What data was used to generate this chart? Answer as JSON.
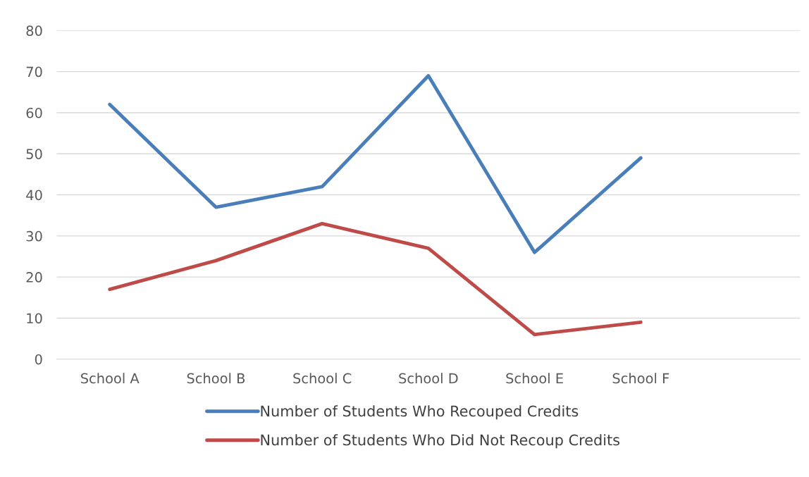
{
  "chart_data": {
    "type": "line",
    "categories": [
      "School A",
      "School B",
      "School C",
      "School D",
      "School E",
      "School F",
      null
    ],
    "series": [
      {
        "name": "Number of Students Who Recouped Credits",
        "color": "#4a7ebb",
        "values": [
          62,
          37,
          42,
          69,
          26,
          49,
          null
        ]
      },
      {
        "name": "Number of Students Who Did Not Recoup Credits",
        "color": "#be4b48",
        "values": [
          17,
          24,
          33,
          27,
          6,
          9,
          null
        ]
      }
    ],
    "ylim": [
      0,
      80
    ],
    "yticks": [
      0,
      10,
      20,
      30,
      40,
      50,
      60,
      70,
      80
    ],
    "grid": "y",
    "legend": "bottom",
    "marker": "none",
    "line_style": "solid"
  }
}
